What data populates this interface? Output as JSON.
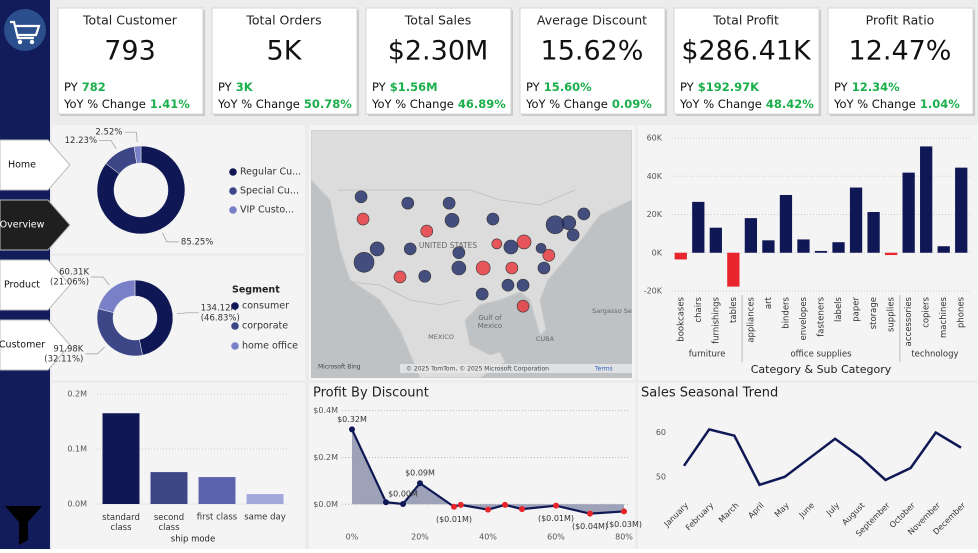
{
  "nav": [
    "Home",
    "Overview",
    "Product",
    "Customer"
  ],
  "kpis": [
    {
      "title": "Total Customer",
      "value": "793",
      "py_label": "PY",
      "py": "782",
      "yoy_label": "YoY % Change",
      "yoy": "1.41%"
    },
    {
      "title": "Total Orders",
      "value": "5K",
      "py_label": "PY",
      "py": "3K",
      "yoy_label": "YoY % Change",
      "yoy": "50.78%"
    },
    {
      "title": "Total Sales",
      "value": "$2.30M",
      "py_label": "PY",
      "py": "$1.56M",
      "yoy_label": "YoY % Change",
      "yoy": "46.89%"
    },
    {
      "title": "Average Discount",
      "value": "15.62%",
      "py_label": "PY",
      "py": "15.60%",
      "yoy_label": "YoY % Change",
      "yoy": "0.09%"
    },
    {
      "title": "Total Profit",
      "value": "$286.41K",
      "py_label": "PY",
      "py": "$192.97K",
      "yoy_label": "YoY % Change",
      "yoy": "48.42%"
    },
    {
      "title": "Profit Ratio",
      "value": "12.47%",
      "py_label": "PY",
      "py": "12.34%",
      "yoy_label": "YoY % Change",
      "yoy": "1.04%"
    }
  ],
  "chart_data": [
    {
      "type": "donut",
      "categories": [
        "Regular Cu...",
        "Special Cu...",
        "VIP Custo..."
      ],
      "values": [
        85.25,
        12.23,
        2.52
      ],
      "value_labels": [
        "85.25%",
        "12.23%",
        "2.52%"
      ],
      "colors": [
        "#0f1854",
        "#3d4787",
        "#7a80c7"
      ]
    },
    {
      "type": "donut",
      "legend_title": "Segment",
      "categories": [
        "consumer",
        "corporate",
        "home office"
      ],
      "values": [
        134120,
        91980,
        60310
      ],
      "value_labels": [
        "134.12K",
        "91.98K",
        "60.31K"
      ],
      "percent_labels": [
        "(46.83%)",
        "(32.11%)",
        "(21.06%)"
      ],
      "colors": [
        "#0f1854",
        "#3d4787",
        "#7a80c7"
      ]
    },
    {
      "type": "map",
      "labels": [
        "UNITED STATES",
        "Gulf of",
        "Mexico",
        "MEXICO",
        "CUBA",
        "Sargasso Sea"
      ],
      "credits": "© 2025 TomTom, © 2025 Microsoft Corporation",
      "terms": "Terms",
      "brand": "Microsoft Bing",
      "points": [
        {
          "lon": -117.7,
          "lat": 41.5,
          "size": 6,
          "color": "#1e2a66"
        },
        {
          "lon": -117.3,
          "lat": 38.0,
          "size": 6,
          "color": "#e8333a"
        },
        {
          "lon": -114.4,
          "lat": 33.3,
          "size": 7,
          "color": "#1e2a66"
        },
        {
          "lon": -117.1,
          "lat": 31.2,
          "size": 10,
          "color": "#1e2a66"
        },
        {
          "lon": -109.7,
          "lat": 28.9,
          "size": 6,
          "color": "#e8333a"
        },
        {
          "lon": -108.1,
          "lat": 40.5,
          "size": 6,
          "color": "#1e2a66"
        },
        {
          "lon": -107.6,
          "lat": 33.3,
          "size": 6,
          "color": "#1e2a66"
        },
        {
          "lon": -104.6,
          "lat": 29.0,
          "size": 6,
          "color": "#1e2a66"
        },
        {
          "lon": -104.2,
          "lat": 36.1,
          "size": 6,
          "color": "#e8333a"
        },
        {
          "lon": -99.6,
          "lat": 40.5,
          "size": 6,
          "color": "#1e2a66"
        },
        {
          "lon": -99.0,
          "lat": 37.8,
          "size": 7,
          "color": "#1e2a66"
        },
        {
          "lon": -97.6,
          "lat": 32.7,
          "size": 6,
          "color": "#1e2a66"
        },
        {
          "lon": -97.6,
          "lat": 30.3,
          "size": 7,
          "color": "#1e2a66"
        },
        {
          "lon": -92.6,
          "lat": 30.3,
          "size": 7,
          "color": "#e8333a"
        },
        {
          "lon": -92.8,
          "lat": 26.2,
          "size": 6,
          "color": "#1e2a66"
        },
        {
          "lon": -90.6,
          "lat": 38.0,
          "size": 6,
          "color": "#1e2a66"
        },
        {
          "lon": -89.8,
          "lat": 34.1,
          "size": 5,
          "color": "#e8333a"
        },
        {
          "lon": -86.9,
          "lat": 33.6,
          "size": 7,
          "color": "#1e2a66"
        },
        {
          "lon": -86.7,
          "lat": 30.3,
          "size": 6,
          "color": "#e8333a"
        },
        {
          "lon": -87.5,
          "lat": 27.6,
          "size": 6,
          "color": "#1e2a66"
        },
        {
          "lon": -84.2,
          "lat": 34.4,
          "size": 7,
          "color": "#e8333a"
        },
        {
          "lon": -84.4,
          "lat": 27.6,
          "size": 6,
          "color": "#1e2a66"
        },
        {
          "lon": -84.4,
          "lat": 24.3,
          "size": 6,
          "color": "#e8333a"
        },
        {
          "lon": -80.1,
          "lat": 30.3,
          "size": 6,
          "color": "#1e2a66"
        },
        {
          "lon": -79.1,
          "lat": 32.3,
          "size": 6,
          "color": "#e8333a"
        },
        {
          "lon": -77.8,
          "lat": 37.1,
          "size": 9,
          "color": "#1e2a66"
        },
        {
          "lon": -75.0,
          "lat": 37.4,
          "size": 7,
          "color": "#1e2a66"
        },
        {
          "lon": -74.1,
          "lat": 35.5,
          "size": 6,
          "color": "#1e2a66"
        },
        {
          "lon": -71.9,
          "lat": 38.8,
          "size": 6,
          "color": "#1e2a66"
        },
        {
          "lon": -80.7,
          "lat": 33.4,
          "size": 5,
          "color": "#1e2a66"
        }
      ]
    },
    {
      "type": "bar",
      "x_title": "Category & Sub Category",
      "categories": [
        "bookcases",
        "chairs",
        "furnishings",
        "tables",
        "appliances",
        "art",
        "binders",
        "envelopes",
        "fasteners",
        "labels",
        "paper",
        "storage",
        "supplies",
        "accessories",
        "copiers",
        "machines",
        "phones"
      ],
      "groups": [
        {
          "name": "furniture",
          "count": 4
        },
        {
          "name": "office supplies",
          "count": 9
        },
        {
          "name": "technology",
          "count": 4
        }
      ],
      "values": [
        -3500,
        26600,
        13100,
        -17700,
        18100,
        6500,
        30200,
        6960,
        950,
        5500,
        34100,
        21300,
        -1200,
        41900,
        55600,
        3400,
        44500
      ],
      "color": "#0f1854",
      "negative_color": "#e8252b",
      "grid": true,
      "ylim": [
        -20000,
        60000
      ],
      "yticks": [
        {
          "value": -20000,
          "label": "-20K"
        },
        {
          "value": 0,
          "label": "0K"
        },
        {
          "value": 20000,
          "label": "20K"
        },
        {
          "value": 40000,
          "label": "40K"
        },
        {
          "value": 60000,
          "label": "60K"
        }
      ]
    },
    {
      "type": "bar",
      "x_title": "ship mode",
      "categories": [
        "standard class",
        "second class",
        "first class",
        "same day"
      ],
      "values": [
        165000,
        58000,
        49000,
        18000
      ],
      "colors": [
        "#0f1854",
        "#3d4787",
        "#5b63ad",
        "#a3a8da"
      ],
      "grid": true,
      "ylim": [
        0,
        200000
      ],
      "yticks": [
        {
          "value": 0,
          "label": "0.0M"
        },
        {
          "value": 100000,
          "label": "0.1M"
        },
        {
          "value": 200000,
          "label": "0.2M"
        }
      ]
    },
    {
      "type": "area",
      "title": "Profit By Discount",
      "x": [
        0,
        10,
        15,
        20,
        30,
        32,
        40,
        45,
        50,
        60,
        70,
        80
      ],
      "values": [
        0.32,
        0.009,
        0.0014,
        0.09,
        -0.0104,
        -0.0024,
        -0.023,
        -0.0025,
        -0.0205,
        -0.0059,
        -0.04,
        -0.0305
      ],
      "value_labels": [
        "$0.32M",
        null,
        "$0.00M",
        "$0.09M",
        "($0.01M)",
        null,
        null,
        null,
        null,
        "($0.01M)",
        "($0.04M)",
        "($0.03M)"
      ],
      "color": "#0f1854",
      "negative_color": "#e8252b",
      "fill": "#8d93ad",
      "grid": true,
      "xlim": [
        0,
        80
      ],
      "xticks": [
        {
          "value": 0,
          "label": "0%"
        },
        {
          "value": 20,
          "label": "20%"
        },
        {
          "value": 40,
          "label": "40%"
        },
        {
          "value": 60,
          "label": "60%"
        },
        {
          "value": 80,
          "label": "80%"
        }
      ],
      "ylim": [
        -0.05,
        0.42
      ],
      "yticks": [
        {
          "value": 0,
          "label": "$0.0M"
        },
        {
          "value": 0.2,
          "label": "$0.2M"
        },
        {
          "value": 0.4,
          "label": "$0.4M"
        }
      ]
    },
    {
      "type": "line",
      "title": "Sales Seasonal Trend",
      "categories": [
        "January",
        "February",
        "March",
        "April",
        "May",
        "June",
        "July",
        "August",
        "September",
        "October",
        "November",
        "December"
      ],
      "values": [
        52.5,
        60.7,
        59.3,
        48.2,
        50,
        54.3,
        58.6,
        54.5,
        49.3,
        52,
        60,
        56.6
      ],
      "color": "#0f1854",
      "ylim": [
        45,
        66
      ],
      "yticks": [
        50,
        60
      ]
    }
  ]
}
